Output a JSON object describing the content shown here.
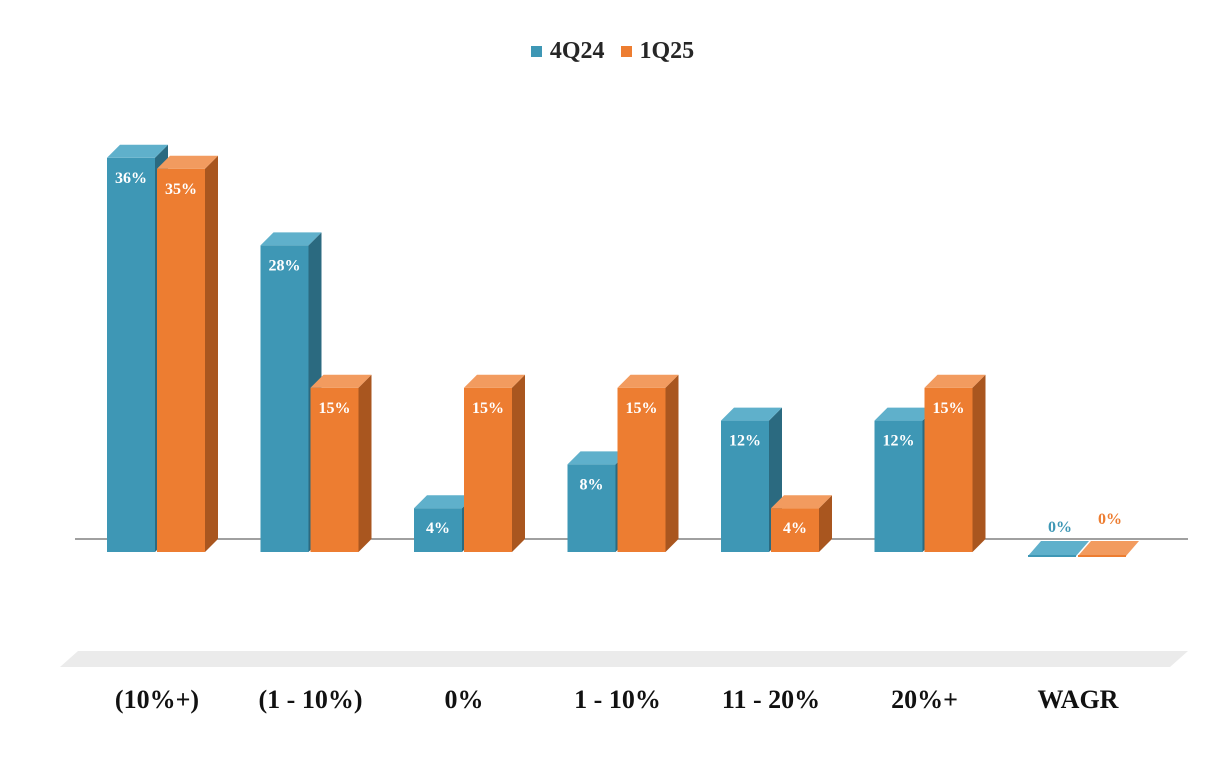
{
  "chart_data": {
    "type": "bar",
    "categories": [
      "(10%+)",
      "(1 - 10%)",
      "0%",
      "1 - 10%",
      "11 - 20%",
      "20%+",
      "WAGR"
    ],
    "series": [
      {
        "name": "4Q24",
        "values": [
          36,
          28,
          4,
          8,
          12,
          12,
          0
        ],
        "labels": [
          "36%",
          "28%",
          "4%",
          "8%",
          "12%",
          "12%",
          "0%"
        ]
      },
      {
        "name": "1Q25",
        "values": [
          35,
          15,
          15,
          15,
          4,
          15,
          0
        ],
        "labels": [
          "35%",
          "15%",
          "15%",
          "15%",
          "4%",
          "15%",
          "0%"
        ]
      }
    ],
    "ylim": [
      0,
      36
    ],
    "grid": false,
    "legend_position": "top-center",
    "style": "3d-column",
    "colors": {
      "4Q24": {
        "front": "#3e97b5",
        "top": "#5fb0cb",
        "side": "#2b6a80",
        "label": "#ffffff",
        "zero_label": "#3e97b5"
      },
      "1Q25": {
        "front": "#ed7d31",
        "top": "#f29b5f",
        "side": "#a9561f",
        "label": "#ffffff",
        "zero_label": "#ed7d31"
      },
      "axis": "#404040",
      "floor": "#ebebeb",
      "category_text": "#111111"
    }
  }
}
